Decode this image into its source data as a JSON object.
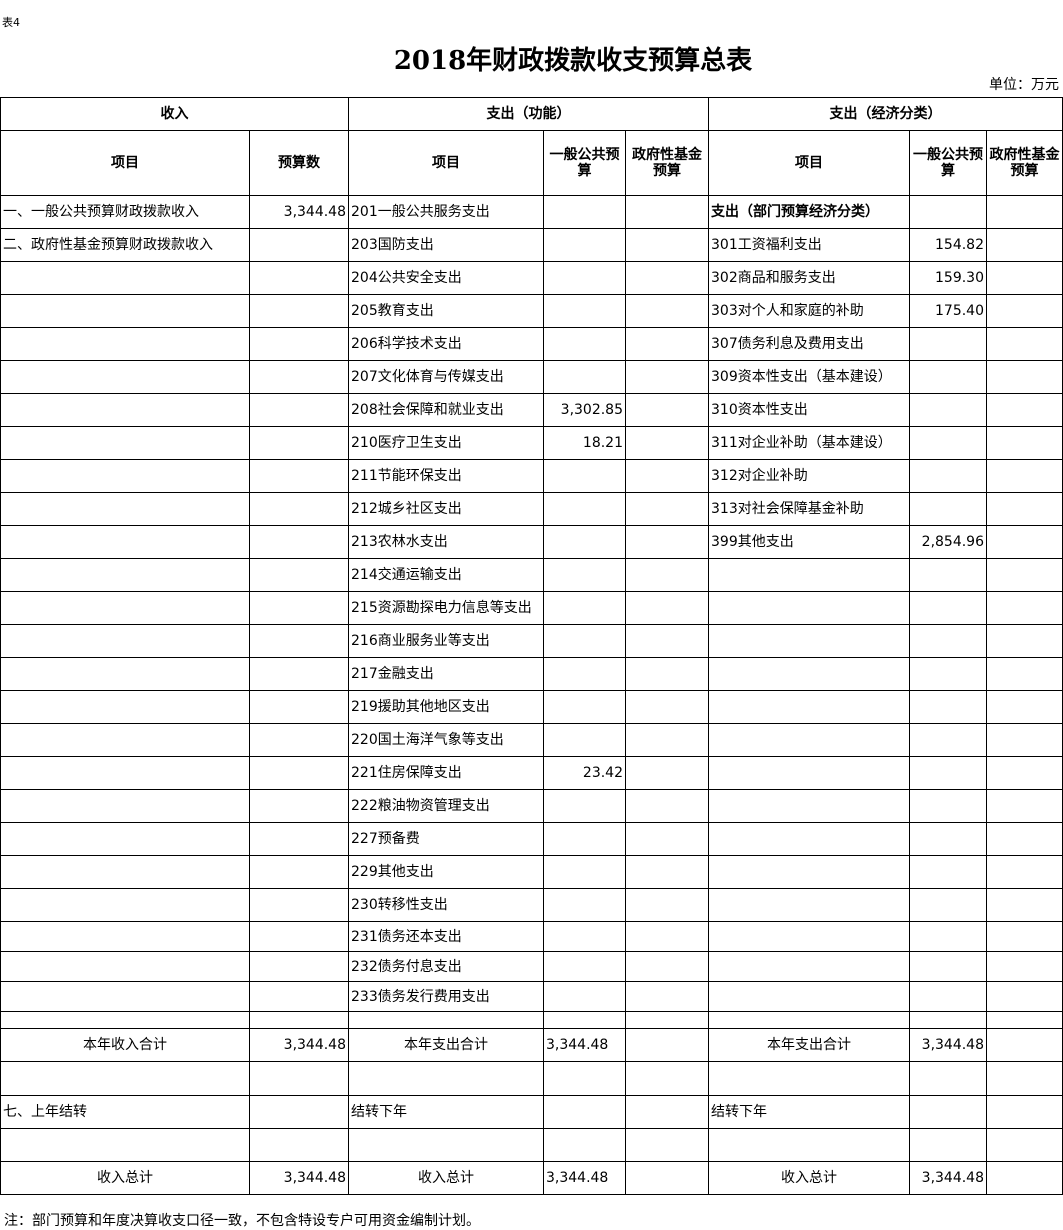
{
  "tag": "表4",
  "title": "2018年财政拨款收支预算总表",
  "unit": "单位：万元",
  "header": {
    "income": "收入",
    "func": "支出（功能）",
    "econ": "支出（经济分类）",
    "item": "项目",
    "budget": "预算数",
    "general": "一般公共预算",
    "fund": "政府性基金预算"
  },
  "rows": [
    [
      "一、一般公共预算财政拨款收入",
      "3,344.48",
      "201一般公共服务支出",
      "",
      "",
      "支出（部门预算经济分类）",
      "",
      ""
    ],
    [
      "二、政府性基金预算财政拨款收入",
      "",
      "203国防支出",
      "",
      "",
      "301工资福利支出",
      "154.82",
      ""
    ],
    [
      "",
      "",
      "204公共安全支出",
      "",
      "",
      "302商品和服务支出",
      "159.30",
      ""
    ],
    [
      "",
      "",
      "205教育支出",
      "",
      "",
      "303对个人和家庭的补助",
      "175.40",
      ""
    ],
    [
      "",
      "",
      "206科学技术支出",
      "",
      "",
      "307债务利息及费用支出",
      "",
      ""
    ],
    [
      "",
      "",
      "207文化体育与传媒支出",
      "",
      "",
      "309资本性支出（基本建设）",
      "",
      ""
    ],
    [
      "",
      "",
      "208社会保障和就业支出",
      "3,302.85",
      "",
      "310资本性支出",
      "",
      ""
    ],
    [
      "",
      "",
      "210医疗卫生支出",
      "18.21",
      "",
      "311对企业补助（基本建设）",
      "",
      ""
    ],
    [
      "",
      "",
      "211节能环保支出",
      "",
      "",
      "312对企业补助",
      "",
      ""
    ],
    [
      "",
      "",
      "212城乡社区支出",
      "",
      "",
      "313对社会保障基金补助",
      "",
      ""
    ],
    [
      "",
      "",
      "213农林水支出",
      "",
      "",
      "399其他支出",
      "2,854.96",
      ""
    ],
    [
      "",
      "",
      "214交通运输支出",
      "",
      "",
      "",
      "",
      ""
    ],
    [
      "",
      "",
      "215资源勘探电力信息等支出",
      "",
      "",
      "",
      "",
      ""
    ],
    [
      "",
      "",
      "216商业服务业等支出",
      "",
      "",
      "",
      "",
      ""
    ],
    [
      "",
      "",
      "217金融支出",
      "",
      "",
      "",
      "",
      ""
    ],
    [
      "",
      "",
      "219援助其他地区支出",
      "",
      "",
      "",
      "",
      ""
    ],
    [
      "",
      "",
      "220国土海洋气象等支出",
      "",
      "",
      "",
      "",
      ""
    ],
    [
      "",
      "",
      "221住房保障支出",
      "23.42",
      "",
      "",
      "",
      ""
    ],
    [
      "",
      "",
      "222粮油物资管理支出",
      "",
      "",
      "",
      "",
      ""
    ],
    [
      "",
      "",
      "227预备费",
      "",
      "",
      "",
      "",
      ""
    ],
    [
      "",
      "",
      "229其他支出",
      "",
      "",
      "",
      "",
      ""
    ],
    [
      "",
      "",
      "230转移性支出",
      "",
      "",
      "",
      "",
      ""
    ],
    [
      "",
      "",
      "231债务还本支出",
      "",
      "",
      "",
      "",
      ""
    ],
    [
      "",
      "",
      "232债务付息支出",
      "",
      "",
      "",
      "",
      ""
    ],
    [
      "",
      "",
      "233债务发行费用支出",
      "",
      "",
      "",
      "",
      ""
    ],
    [
      "",
      "",
      "",
      "",
      "",
      "",
      "",
      ""
    ]
  ],
  "total_year": {
    "income_label": "本年收入合计",
    "income": "3,344.48",
    "func_label": "本年支出合计",
    "func": "3,344.48",
    "econ_label": "本年支出合计",
    "econ": "3,344.48"
  },
  "carry": {
    "income_label": "七、上年结转",
    "func_label": "结转下年",
    "econ_label": "结转下年"
  },
  "grand": {
    "income_label": "收入总计",
    "income": "3,344.48",
    "func_label": "收入总计",
    "func": "3,344.48",
    "econ_label": "收入总计",
    "econ": "3,344.48"
  },
  "note": "注：部门预算和年度决算收支口径一致，不包含特设专户可用资金编制计划。"
}
